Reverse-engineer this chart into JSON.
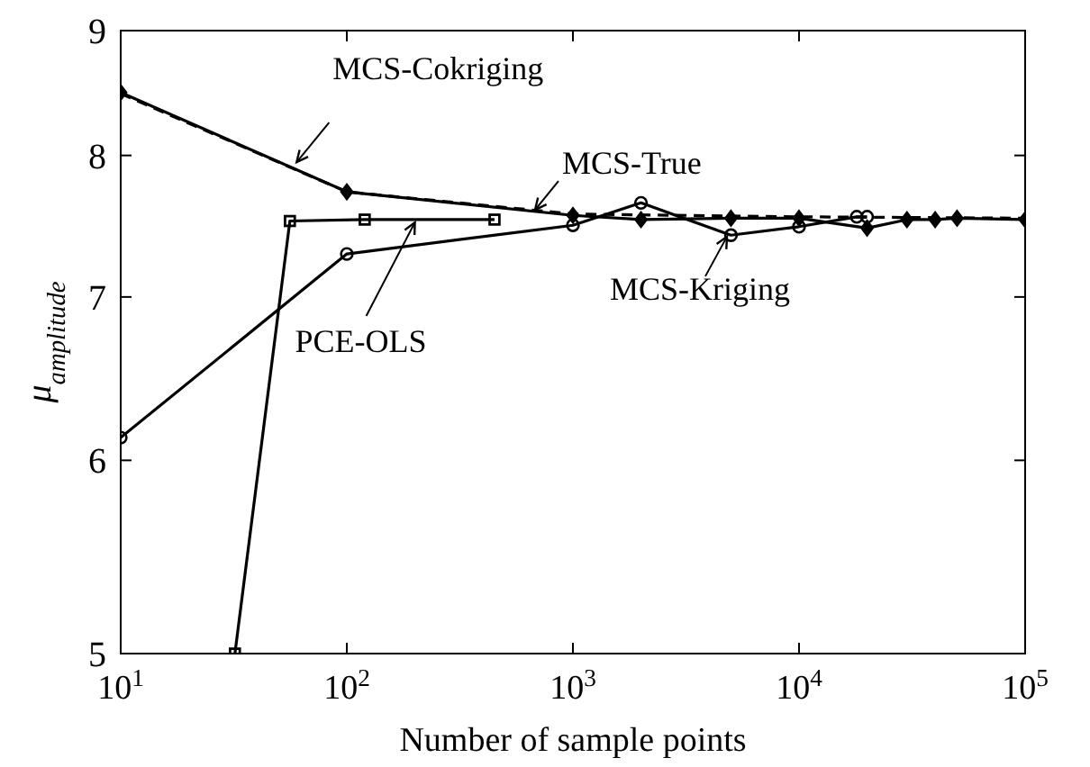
{
  "chart_data": {
    "type": "line",
    "xlabel": "Number of sample points",
    "ylabel": "μ$_{amplitude}$",
    "log": "xy",
    "grid": false,
    "xlim": [
      10,
      100000
    ],
    "xticks": [
      {
        "value": 10,
        "label": "10$^{1}$"
      },
      {
        "value": 100,
        "label": "10$^{2}$"
      },
      {
        "value": 1000,
        "label": "10$^{3}$"
      },
      {
        "value": 10000,
        "label": "10$^{4}$"
      },
      {
        "value": 100000,
        "label": "10$^{5}$"
      }
    ],
    "ylim": [
      5,
      9
    ],
    "yticks": [
      5,
      6,
      7,
      8,
      9
    ],
    "series": [
      {
        "color": "#000000",
        "marker": "none",
        "line_style": "dashed",
        "x": [
          10,
          100,
          1000,
          10000,
          100000
        ],
        "values": [
          8.48,
          7.73,
          7.57,
          7.55,
          7.54
        ]
      },
      {
        "color": "#000000",
        "marker": "diamond",
        "line_style": "solid",
        "x": [
          10,
          100,
          1000,
          2000,
          5000,
          10000,
          20000,
          30000,
          40000,
          50000,
          100000
        ],
        "values": [
          8.49,
          7.73,
          7.56,
          7.53,
          7.54,
          7.54,
          7.47,
          7.53,
          7.53,
          7.54,
          7.53
        ]
      },
      {
        "color": "#000000",
        "marker": "circle",
        "line_style": "solid",
        "x": [
          10,
          100,
          1000,
          2000,
          5000,
          10000,
          18000,
          20000
        ],
        "values": [
          6.13,
          7.29,
          7.49,
          7.65,
          7.42,
          7.48,
          7.55,
          7.55
        ]
      },
      {
        "color": "#000000",
        "marker": "square",
        "line_style": "solid",
        "x": [
          32,
          56,
          120,
          450
        ],
        "values": [
          5,
          7.52,
          7.53,
          7.53
        ]
      }
    ],
    "annotations": [
      {
        "text": "MCS-Cokriging",
        "x": 60,
        "y": 7.95
      },
      {
        "text": "MCS-True",
        "x": 680,
        "y": 7.6
      },
      {
        "text": "MCS-Kriging",
        "x": 4800,
        "y": 7.41
      },
      {
        "text": "PCE-OLS",
        "x": 200,
        "y": 7.51
      }
    ]
  }
}
